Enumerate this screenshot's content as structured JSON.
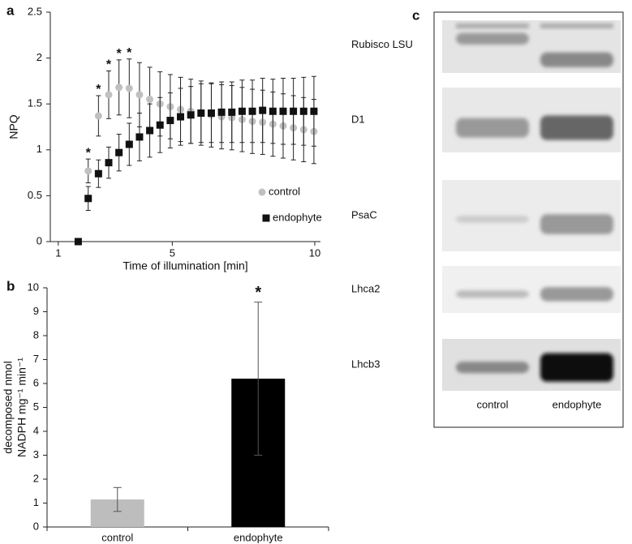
{
  "chart_data": [
    {
      "type": "scatter",
      "label": "a",
      "xlabel": "Time of illumination [min]",
      "ylabel": "NPQ",
      "xlim": [
        0.72,
        10.2
      ],
      "xticks": [
        1,
        5,
        10
      ],
      "ylim": [
        0,
        2.5
      ],
      "yticks": [
        0,
        {
          "value": 0.5,
          "label": "0.5"
        },
        1,
        {
          "value": 1.5,
          "label": "1.5"
        },
        2,
        {
          "value": 2.5,
          "label": "2.5"
        }
      ],
      "legend": "lower right",
      "x": [
        1.7,
        2.05,
        2.41,
        2.77,
        3.13,
        3.49,
        3.85,
        4.21,
        4.57,
        4.93,
        5.29,
        5.65,
        6.01,
        6.37,
        6.73,
        7.09,
        7.45,
        7.81,
        8.17,
        8.53,
        8.89,
        9.25,
        9.61,
        9.97
      ],
      "series": [
        {
          "name": "control",
          "color": "#c0c0c0",
          "marker": "circle",
          "values": [
            0,
            0.77,
            1.37,
            1.6,
            1.68,
            1.67,
            1.6,
            1.55,
            1.5,
            1.47,
            1.44,
            1.42,
            1.4,
            1.38,
            1.36,
            1.35,
            1.33,
            1.31,
            1.3,
            1.28,
            1.26,
            1.24,
            1.22,
            1.2
          ],
          "errors": [
            0,
            0.13,
            0.22,
            0.26,
            0.3,
            0.32,
            0.35,
            0.35,
            0.35,
            0.35,
            0.35,
            0.35,
            0.35,
            0.35,
            0.35,
            0.35,
            0.35,
            0.35,
            0.35,
            0.35,
            0.35,
            0.35,
            0.35,
            0.35
          ],
          "annotations": [
            null,
            "*",
            "*",
            "*",
            "*",
            "*",
            null,
            null,
            null,
            null,
            null,
            null,
            null,
            null,
            null,
            null,
            null,
            null,
            null,
            null,
            null,
            null,
            null,
            null
          ]
        },
        {
          "name": "endophyte",
          "color": "#111111",
          "marker": "square",
          "values": [
            0,
            0.47,
            0.74,
            0.86,
            0.97,
            1.06,
            1.14,
            1.21,
            1.27,
            1.32,
            1.36,
            1.38,
            1.4,
            1.4,
            1.41,
            1.41,
            1.42,
            1.42,
            1.43,
            1.42,
            1.42,
            1.42,
            1.42,
            1.42
          ],
          "errors": [
            0,
            0.13,
            0.15,
            0.17,
            0.2,
            0.23,
            0.26,
            0.29,
            0.3,
            0.3,
            0.31,
            0.31,
            0.32,
            0.32,
            0.33,
            0.33,
            0.34,
            0.34,
            0.35,
            0.35,
            0.36,
            0.36,
            0.37,
            0.38
          ]
        }
      ]
    },
    {
      "type": "bar",
      "label": "b",
      "ylabel": [
        "decomposed nmol",
        "NADPH mg⁻¹ min⁻¹"
      ],
      "categories": [
        "control",
        "endophyte"
      ],
      "values": [
        1.15,
        6.2
      ],
      "errors": [
        0.5,
        3.2
      ],
      "colors": [
        "#bdbdbd",
        "#000000"
      ],
      "annotations": [
        null,
        "*"
      ],
      "ylim": [
        0,
        10
      ],
      "yticks": [
        0,
        1,
        2,
        3,
        4,
        5,
        6,
        7,
        8,
        9,
        10
      ]
    }
  ],
  "blot": {
    "label": "c",
    "proteins": [
      "Rubisco LSU",
      "D1",
      "PsaC",
      "Lhca2",
      "Lhcb3"
    ],
    "lanes": [
      "control",
      "endophyte"
    ]
  }
}
